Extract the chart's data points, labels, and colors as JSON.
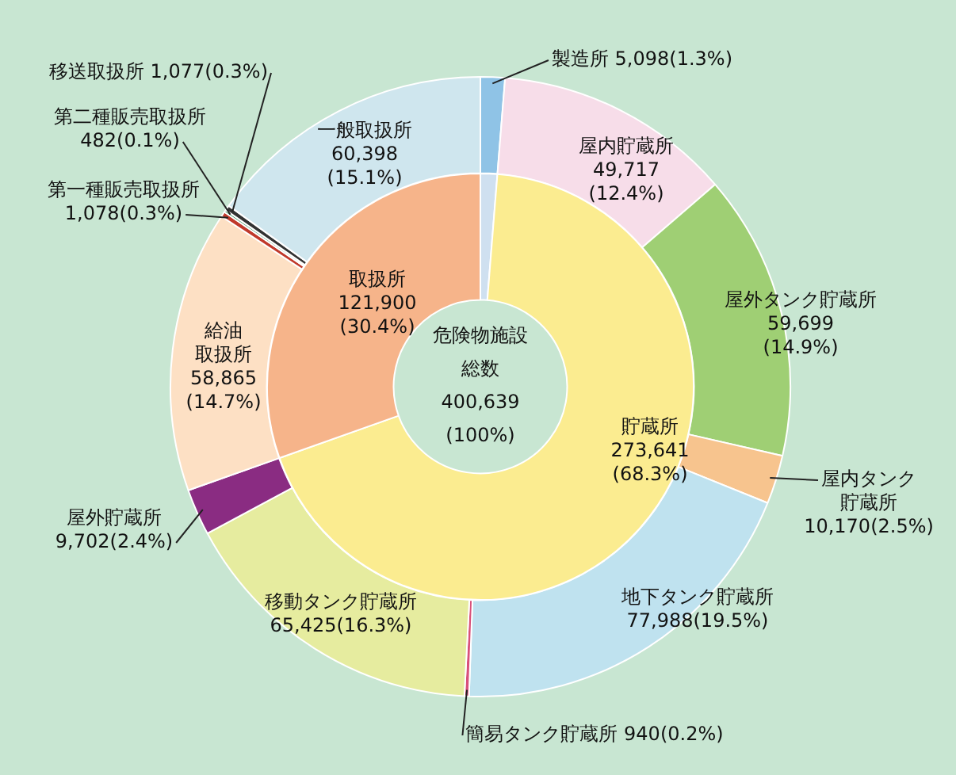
{
  "chart_data": [
    {
      "type": "donut",
      "categories": [
        "製造所",
        "屋内貯蔵所",
        "屋外タンク貯蔵所",
        "屋内タンク貯蔵所",
        "地下タンク貯蔵所",
        "簡易タンク貯蔵所",
        "移動タンク貯蔵所",
        "屋外貯蔵所",
        "給油取扱所",
        "第一種販売取扱所",
        "第二種販売取扱所",
        "移送取扱所",
        "一般取扱所"
      ],
      "values": [
        5098,
        49717,
        59699,
        10170,
        77988,
        940,
        65425,
        9702,
        58865,
        1078,
        482,
        1077,
        60398
      ],
      "colors": [
        "#8fc3e6",
        "#f7dde9",
        "#9fcf74",
        "#f7c48e",
        "#bfe2ef",
        "#d9507a",
        "#e6ec9f",
        "#8a2c82",
        "#fde0c4",
        "#c0392b",
        "#2e8b57",
        "#333333",
        "#cfe6ee"
      ],
      "value_labels": [
        "5,098(1.3%)",
        "49,717(12.4%)",
        "59,699(14.9%)",
        "10,170(2.5%)",
        "77,988(19.5%)",
        "940(0.2%)",
        "65,425(16.3%)",
        "9,702(2.4%)",
        "58,865(14.7%)",
        "1,078(0.3%)",
        "482(0.1%)",
        "1,077(0.3%)",
        "60,398(15.1%)"
      ]
    },
    {
      "type": "donut",
      "categories": [
        null,
        "貯蔵所",
        "取扱所"
      ],
      "values": [
        5098,
        273641,
        121900
      ],
      "colors": [
        "#cfe0f0",
        "#fbec90",
        "#f6b48a"
      ],
      "value_labels": [
        null,
        "273,641(68.3%)",
        "121,900(30.4%)"
      ],
      "annotations": [
        "危険物施設総数",
        "400,639",
        "(100%)"
      ]
    }
  ]
}
